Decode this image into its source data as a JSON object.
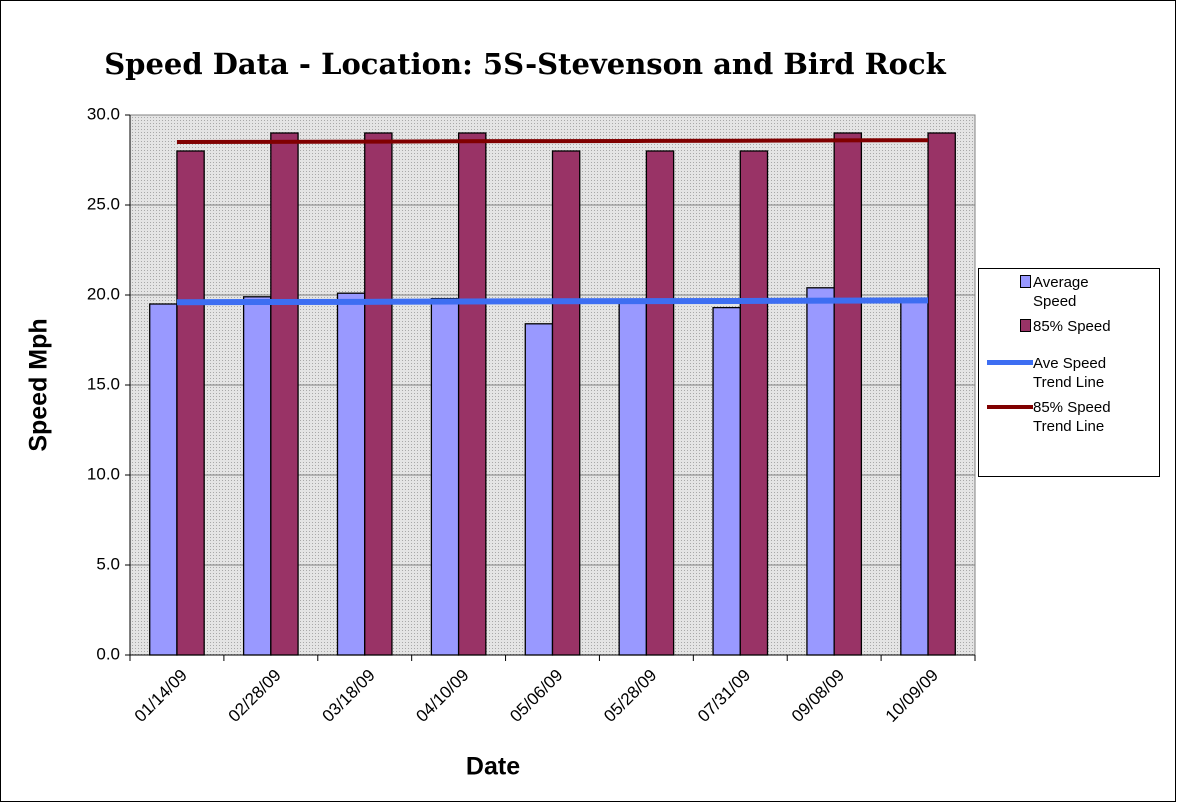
{
  "chart_data": {
    "type": "bar",
    "title": "Speed Data - Location: 5S-Stevenson and Bird Rock",
    "x_label": "Date",
    "y_label": "Speed Mph",
    "categories": [
      "01/14/09",
      "02/28/09",
      "03/18/09",
      "04/10/09",
      "05/06/09",
      "05/28/09",
      "07/31/09",
      "09/08/09",
      "10/09/09"
    ],
    "series": [
      {
        "name": "Average Speed",
        "type": "bar",
        "color": "#9999ff",
        "values": [
          19.5,
          19.9,
          20.1,
          19.8,
          18.4,
          19.7,
          19.3,
          20.4,
          19.8
        ]
      },
      {
        "name": "85% Speed",
        "type": "bar",
        "color": "#993366",
        "values": [
          28,
          29,
          29,
          29,
          28,
          28,
          28,
          29,
          29
        ]
      },
      {
        "name": "Ave Speed Trend Line",
        "type": "line",
        "color": "#3d6ef2",
        "values": [
          19.6,
          19.61,
          19.62,
          19.64,
          19.65,
          19.66,
          19.67,
          19.69,
          19.7
        ]
      },
      {
        "name": "85% Speed Trend Line",
        "type": "line",
        "color": "#800000",
        "values": [
          28.5,
          28.51,
          28.52,
          28.54,
          28.55,
          28.56,
          28.57,
          28.59,
          28.6
        ]
      }
    ],
    "ylim": [
      0,
      30
    ],
    "yticks": [
      {
        "value": 0,
        "label": "0.0"
      },
      {
        "value": 5,
        "label": "5.0"
      },
      {
        "value": 10,
        "label": "10.0"
      },
      {
        "value": 15,
        "label": "15.0"
      },
      {
        "value": 20,
        "label": "20.0"
      },
      {
        "value": 25,
        "label": "25.0"
      },
      {
        "value": 30,
        "label": "30.0"
      }
    ],
    "grid": true,
    "legend": "right"
  }
}
